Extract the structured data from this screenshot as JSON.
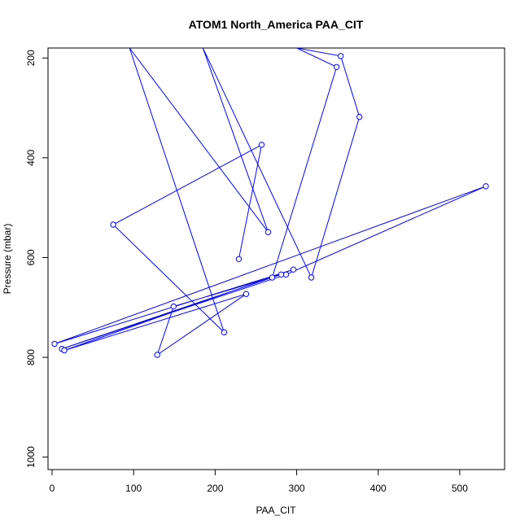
{
  "chart_data": {
    "type": "line",
    "title": "ATOM1 North_America PAA_CIT",
    "xlabel": "PAA_CIT",
    "ylabel": "Pressure (mbar)",
    "xlim": [
      -5,
      555
    ],
    "ylim": [
      1025,
      180
    ],
    "y_reversed": true,
    "grid": false,
    "legend": "none",
    "x_ticks": [
      0,
      100,
      200,
      300,
      400,
      500
    ],
    "y_ticks": [
      200,
      400,
      600,
      800,
      1000
    ],
    "colors": {
      "series": "#0000ff"
    },
    "series": [
      {
        "marker": "open-circle",
        "lines_start": [
          [
            100,
            180
          ],
          [
            187,
            180
          ],
          [
            300,
            180
          ]
        ],
        "points": [
          [
            229,
            603
          ],
          [
            257,
            374
          ],
          [
            75,
            534
          ],
          [
            211,
            750
          ],
          [
            95,
            180
          ],
          [
            265,
            549
          ],
          [
            185,
            180
          ],
          [
            318,
            640
          ],
          [
            377,
            318
          ],
          [
            354,
            196
          ],
          [
            300,
            180
          ],
          [
            349,
            218
          ],
          [
            270,
            640
          ],
          [
            12,
            783
          ],
          [
            287,
            634
          ],
          [
            532,
            457
          ],
          [
            3,
            773
          ],
          [
            296,
            624
          ],
          [
            15,
            786
          ],
          [
            238,
            673
          ],
          [
            129,
            795
          ],
          [
            149,
            698
          ],
          [
            281,
            634
          ]
        ]
      }
    ]
  }
}
